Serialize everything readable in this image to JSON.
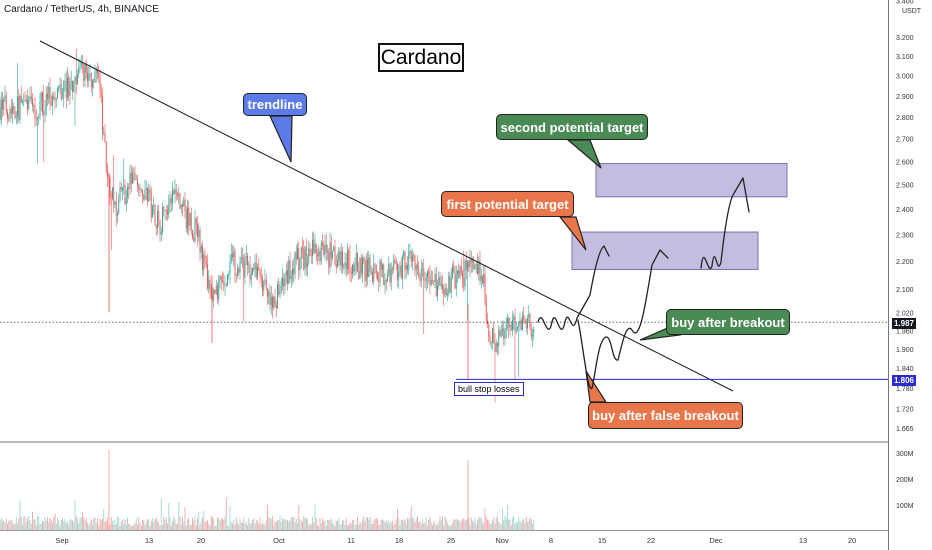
{
  "header": {
    "title": "Cardano / TetherUS, 4h, BINANCE"
  },
  "chart_data": {
    "type": "candlestick",
    "title": "Cardano",
    "symbol": "Cardano / TetherUS",
    "interval": "4h",
    "exchange": "BINANCE",
    "y_unit": "USDT",
    "ylim": [
      1.62,
      3.42
    ],
    "y_scale": "log",
    "price_ticks": [
      "3.400",
      "3.200",
      "3.100",
      "3.000",
      "2.900",
      "2.800",
      "2.700",
      "2.600",
      "2.500",
      "2.400",
      "2.300",
      "2.200",
      "2.100",
      "2.020",
      "1.960",
      "1.900",
      "1.840",
      "1.780",
      "1.720",
      "1.665"
    ],
    "volume_ticks": [
      "300M",
      "200M",
      "100M"
    ],
    "x_ticks": [
      "Sep",
      "13",
      "20",
      "Oct",
      "11",
      "18",
      "25",
      "Nov",
      "8",
      "15",
      "22",
      "Dec",
      "13",
      "20"
    ],
    "current_price": "1.987",
    "support_level": "1.806",
    "current_price_color": "#131722",
    "support_color": "#2a2ad0",
    "price_path": [
      {
        "date": "2021-08-29",
        "price": 2.85
      },
      {
        "date": "2021-09-02",
        "price": 2.95
      },
      {
        "date": "2021-09-04",
        "price": 3.02
      },
      {
        "date": "2021-09-06",
        "price": 2.95
      },
      {
        "date": "2021-09-07",
        "price": 2.55
      },
      {
        "date": "2021-09-08",
        "price": 2.4
      },
      {
        "date": "2021-09-11",
        "price": 2.55
      },
      {
        "date": "2021-09-14",
        "price": 2.35
      },
      {
        "date": "2021-09-16",
        "price": 2.45
      },
      {
        "date": "2021-09-19",
        "price": 2.3
      },
      {
        "date": "2021-09-21",
        "price": 2.05
      },
      {
        "date": "2021-09-24",
        "price": 2.2
      },
      {
        "date": "2021-09-27",
        "price": 2.15
      },
      {
        "date": "2021-09-29",
        "price": 2.05
      },
      {
        "date": "2021-10-02",
        "price": 2.2
      },
      {
        "date": "2021-10-05",
        "price": 2.25
      },
      {
        "date": "2021-10-08",
        "price": 2.2
      },
      {
        "date": "2021-10-11",
        "price": 2.18
      },
      {
        "date": "2021-10-14",
        "price": 2.15
      },
      {
        "date": "2021-10-17",
        "price": 2.2
      },
      {
        "date": "2021-10-21",
        "price": 2.1
      },
      {
        "date": "2021-10-24",
        "price": 2.15
      },
      {
        "date": "2021-10-27",
        "price": 2.18
      },
      {
        "date": "2021-10-28",
        "price": 1.92
      },
      {
        "date": "2021-10-31",
        "price": 1.97
      },
      {
        "date": "2021-11-03",
        "price": 1.98
      },
      {
        "date": "2021-11-05",
        "price": 2.05
      },
      {
        "date": "2021-11-07",
        "price": 1.987
      }
    ],
    "annotations": {
      "trendline": "trendline",
      "first_target": "first potential target",
      "second_target": "second potential target",
      "buy_breakout": "buy after breakout",
      "buy_false_breakout": "buy after false breakout",
      "stop_label": "bull stop losses"
    },
    "target_zones": [
      {
        "name": "first potential target",
        "low": 2.17,
        "high": 2.31
      },
      {
        "name": "second potential target",
        "low": 2.45,
        "high": 2.59
      }
    ]
  }
}
